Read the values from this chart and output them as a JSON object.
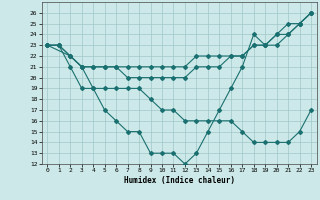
{
  "background_color": "#cde8e8",
  "grid_color": "#a0c8c8",
  "line_color": "#1a7070",
  "xlabel": "Humidex (Indice chaleur)",
  "xlim": [
    -0.5,
    23.5
  ],
  "ylim": [
    12,
    27
  ],
  "xticks": [
    0,
    1,
    2,
    3,
    4,
    5,
    6,
    7,
    8,
    9,
    10,
    11,
    12,
    13,
    14,
    15,
    16,
    17,
    18,
    19,
    20,
    21,
    22,
    23
  ],
  "yticks": [
    12,
    13,
    14,
    15,
    16,
    17,
    18,
    19,
    20,
    21,
    22,
    23,
    24,
    25,
    26
  ],
  "line1_x": [
    0,
    1,
    2,
    3,
    4,
    5,
    6,
    7,
    8,
    9,
    10,
    11,
    12,
    13,
    14,
    15,
    16,
    17,
    18,
    19,
    20,
    21,
    22,
    23
  ],
  "line1_y": [
    23,
    23,
    22,
    21,
    21,
    21,
    21,
    21,
    21,
    21,
    21,
    21,
    21,
    22,
    22,
    22,
    22,
    22,
    23,
    23,
    23,
    24,
    25,
    26
  ],
  "line2_x": [
    0,
    1,
    2,
    3,
    4,
    5,
    6,
    7,
    8,
    9,
    10,
    11,
    12,
    13,
    14,
    15,
    16,
    17,
    18,
    19,
    20,
    21,
    22,
    23
  ],
  "line2_y": [
    23,
    23,
    21,
    19,
    19,
    17,
    16,
    15,
    15,
    13,
    13,
    13,
    12,
    13,
    15,
    17,
    19,
    21,
    24,
    23,
    24,
    25,
    25,
    26
  ],
  "line3_x": [
    0,
    1,
    2,
    3,
    4,
    5,
    6,
    7,
    8,
    9,
    10,
    11,
    12,
    13,
    14,
    15,
    16,
    17,
    18,
    19,
    20,
    21,
    22,
    23
  ],
  "line3_y": [
    23,
    23,
    22,
    21,
    21,
    21,
    21,
    20,
    20,
    20,
    20,
    20,
    20,
    21,
    21,
    21,
    22,
    22,
    23,
    23,
    24,
    24,
    25,
    26
  ],
  "line4_x": [
    0,
    2,
    3,
    4,
    5,
    6,
    7,
    8,
    9,
    10,
    11,
    12,
    13,
    14,
    15,
    16,
    17,
    18,
    19,
    20,
    21,
    22,
    23
  ],
  "line4_y": [
    23,
    22,
    21,
    19,
    19,
    19,
    19,
    19,
    18,
    17,
    17,
    16,
    16,
    16,
    16,
    16,
    15,
    14,
    14,
    14,
    14,
    15,
    17
  ]
}
